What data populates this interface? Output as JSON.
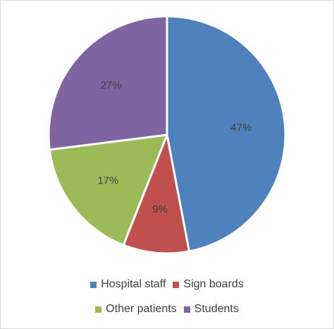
{
  "chart_data": {
    "type": "pie",
    "categories": [
      "Hospital staff",
      "Sign boards",
      "Other patients",
      "Students"
    ],
    "values": [
      47,
      9,
      17,
      27
    ],
    "labels": [
      "47%",
      "9%",
      "17%",
      "27%"
    ],
    "colors": [
      "#4F81BD",
      "#C0504D",
      "#9BBB59",
      "#8064A2"
    ],
    "start_angle_deg": 0,
    "direction": "clockwise",
    "legend_position": "bottom",
    "title": ""
  },
  "legend": {
    "rows": [
      [
        {
          "label": "Hospital staff",
          "color": "#4F81BD"
        },
        {
          "label": "Sign boards",
          "color": "#C0504D"
        }
      ],
      [
        {
          "label": "Other patients",
          "color": "#9BBB59"
        },
        {
          "label": "Students",
          "color": "#8064A2"
        }
      ]
    ]
  }
}
